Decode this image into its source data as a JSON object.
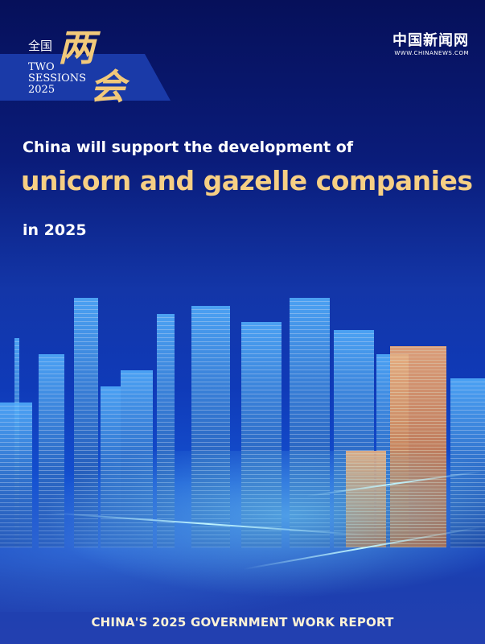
{
  "badge": {
    "quanguo": "全国",
    "two_sessions": "TWO",
    "sessions": "SESSIONS",
    "year": "2025",
    "lianghui_1": "两",
    "lianghui_2": "会"
  },
  "logo": {
    "name": "中国新闻网",
    "url": "WWW.CHINANEWS.COM"
  },
  "headline": {
    "line1": "China will support the development of",
    "line2": "unicorn and gazelle companies",
    "line3": "in 2025"
  },
  "footer": "CHINA'S 2025 GOVERNMENT WORK REPORT",
  "colors": {
    "gold": "#f6cf84",
    "navy": "#06105a",
    "blue": "#1450d0"
  }
}
